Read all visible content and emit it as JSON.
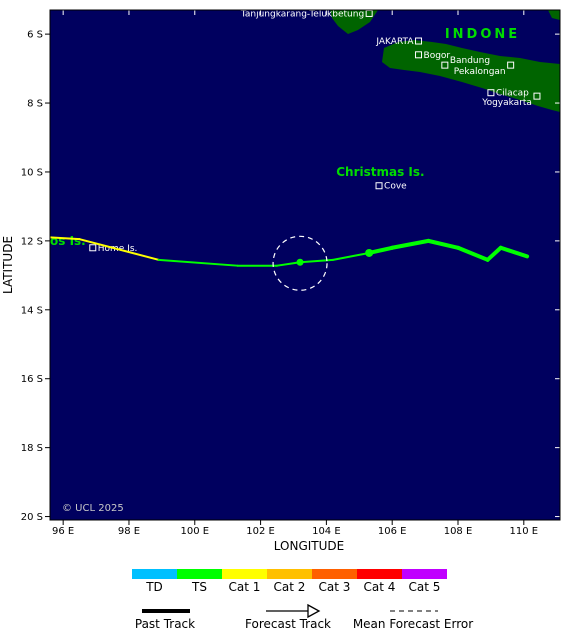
{
  "map": {
    "lon_range": [
      95.6,
      111.1
    ],
    "lat_range": [
      -5.3,
      -20.1
    ],
    "lon_ticks": [
      96,
      98,
      100,
      102,
      104,
      106,
      108,
      110
    ],
    "lat_ticks": [
      -6,
      -8,
      -10,
      -12,
      -14,
      -16,
      -18,
      -20
    ],
    "lon_tick_labels": [
      "96 E",
      "98 E",
      "100 E",
      "102 E",
      "104 E",
      "106 E",
      "108 E",
      "110 E"
    ],
    "lat_tick_labels": [
      "6 S",
      "8 S",
      "10 S",
      "12 S",
      "14 S",
      "16 S",
      "18 S",
      "20 S"
    ],
    "xlabel": "LONGITUDE",
    "ylabel": "LATITUDE",
    "copyright": "© UCL 2025",
    "colors": {
      "ocean": "#00005f",
      "land": "#006400",
      "region_label": "#00dd00",
      "place_label": "#ffffff"
    }
  },
  "places": [
    {
      "name": "Tanjungkarang-Telukbetung",
      "lon": 105.3,
      "lat": -5.4,
      "label_side": "left"
    },
    {
      "name": "JAKARTA",
      "lon": 106.8,
      "lat": -6.2,
      "label_side": "left"
    },
    {
      "name": "Bogor",
      "lon": 106.8,
      "lat": -6.6,
      "label_side": "right"
    },
    {
      "name": "Bandung",
      "lon": 107.6,
      "lat": -6.9,
      "label_side": "right-up"
    },
    {
      "name": "Pekalongan",
      "lon": 109.6,
      "lat": -6.9,
      "label_side": "left-down"
    },
    {
      "name": "Cilacap",
      "lon": 109.0,
      "lat": -7.7,
      "label_side": "right"
    },
    {
      "name": "Yogyakarta",
      "lon": 110.4,
      "lat": -7.8,
      "label_side": "left-down"
    },
    {
      "name": "Cove",
      "lon": 105.6,
      "lat": -10.4,
      "label_side": "right"
    },
    {
      "name": "Home Is.",
      "lon": 96.9,
      "lat": -12.2,
      "label_side": "right"
    }
  ],
  "regions": [
    {
      "name": "INDONE",
      "lon": 107.6,
      "lat": -6.0,
      "letter_spaced": true
    },
    {
      "name": "Christmas Is.",
      "lon": 104.3,
      "lat": -10.0,
      "letter_spaced": false
    },
    {
      "name": "os Is.",
      "lon": 95.6,
      "lat": -12.0,
      "letter_spaced": false
    }
  ],
  "track": {
    "segments": [
      {
        "category": "Cat 1",
        "points": [
          [
            95.6,
            -11.9
          ],
          [
            96.5,
            -11.95
          ],
          [
            98.9,
            -12.55
          ]
        ]
      },
      {
        "category": "TS",
        "points": [
          [
            98.9,
            -12.55
          ],
          [
            101.3,
            -12.72
          ],
          [
            102.5,
            -12.72
          ],
          [
            103.2,
            -12.62
          ],
          [
            104.2,
            -12.55
          ],
          [
            105.3,
            -12.35
          ],
          [
            106.0,
            -12.2
          ],
          [
            107.1,
            -12.0
          ],
          [
            108.0,
            -12.2
          ],
          [
            108.9,
            -12.55
          ],
          [
            109.3,
            -12.2
          ],
          [
            110.1,
            -12.45
          ]
        ]
      }
    ],
    "wide_from_lon": 105.3,
    "forecast_points": [
      [
        103.2,
        -12.62
      ],
      [
        105.3,
        -12.35
      ]
    ],
    "error_circle": {
      "lon": 103.2,
      "lat": -12.65,
      "radius_deg": 0.82
    }
  },
  "legend": {
    "categories": [
      {
        "label": "TD",
        "color": "#00c0ff"
      },
      {
        "label": "TS",
        "color": "#00ff00"
      },
      {
        "label": "Cat 1",
        "color": "#ffff00"
      },
      {
        "label": "Cat 2",
        "color": "#ffc000"
      },
      {
        "label": "Cat 3",
        "color": "#ff6000"
      },
      {
        "label": "Cat 4",
        "color": "#ff0000"
      },
      {
        "label": "Cat 5",
        "color": "#c000ff"
      }
    ],
    "past_track_label": "Past Track",
    "forecast_track_label": "Forecast Track",
    "mean_error_label": "Mean Forecast Error"
  }
}
